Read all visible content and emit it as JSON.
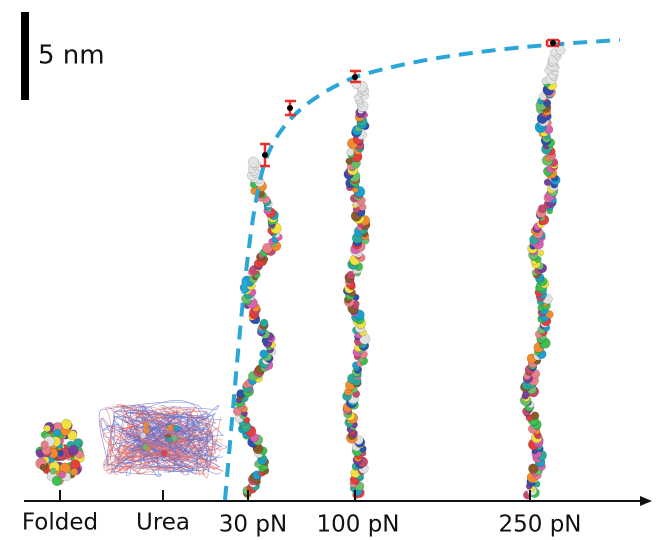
{
  "scale_bar": {
    "label": "5 nm"
  },
  "conditions": [
    "Folded",
    "Urea",
    "30 pN",
    "100 pN",
    "250 pN"
  ]
}
